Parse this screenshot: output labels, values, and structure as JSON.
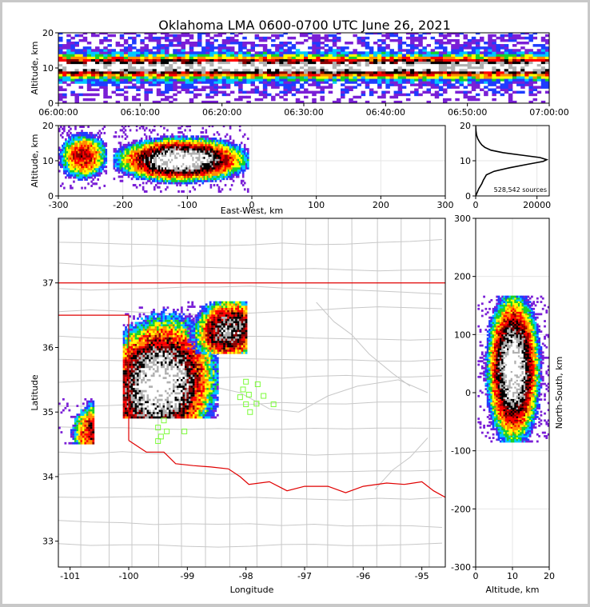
{
  "title": "Oklahoma LMA 0600-0700 UTC June 26, 2021",
  "colors": {
    "state_border": "#e00000",
    "county_line": "#c8c8c8",
    "stations": "#7cfc3a",
    "density_ramp": [
      "#7a1fd6",
      "#1f3cff",
      "#00c8ff",
      "#18d028",
      "#ffff00",
      "#ff8c00",
      "#ff0000",
      "#8b0000",
      "#000000",
      "#b0b0b0",
      "#ffffff"
    ]
  },
  "chart_data": [
    {
      "id": "time-height",
      "type": "heatmap",
      "ylabel": "Altitude, km",
      "yticks": [
        "0",
        "10",
        "20"
      ],
      "ylim": [
        0,
        20
      ],
      "xticks": [
        "06:00:00",
        "06:10:00",
        "06:20:00",
        "06:30:00",
        "06:40:00",
        "06:50:00",
        "07:00:00"
      ],
      "xlim_minutes": [
        0,
        60
      ],
      "core_altitude_km": 10,
      "lower_altitude_band_km": [
        2,
        8
      ],
      "upper_altitude_band_km": [
        12,
        18
      ]
    },
    {
      "id": "ew-altitude",
      "type": "heatmap",
      "xlabel": "East-West, km",
      "ylabel": "Altitude, km",
      "xticks": [
        "-300",
        "-200",
        "-100",
        "0",
        "100",
        "200",
        "300"
      ],
      "yticks": [
        "0",
        "10",
        "20"
      ],
      "xlim": [
        -300,
        300
      ],
      "ylim": [
        0,
        20
      ],
      "clusters": [
        {
          "ew_range_km": [
            -300,
            -225
          ],
          "alt_range_km": [
            2,
            20
          ],
          "peak_alt_km": 11,
          "intensity": 0.65
        },
        {
          "ew_range_km": [
            -215,
            -5
          ],
          "alt_range_km": [
            1,
            20
          ],
          "peak_alt_km": 10,
          "intensity": 1.0
        }
      ]
    },
    {
      "id": "altitude-histogram",
      "type": "line",
      "annotation": "528,542 sources",
      "xticks": [
        "0",
        "20000"
      ],
      "yticks": [
        "0",
        "10",
        "20"
      ],
      "xlim": [
        0,
        24000
      ],
      "ylim": [
        0,
        20
      ],
      "x": [
        0,
        1000,
        2000,
        2500,
        3500,
        6000,
        11000,
        17000,
        22000,
        23200,
        21000,
        15000,
        9000,
        5000,
        3000,
        2000,
        1300,
        700,
        300,
        100,
        0
      ],
      "y": [
        0,
        2,
        3.5,
        4.5,
        6,
        7,
        8,
        9,
        9.8,
        10.3,
        10.9,
        11.6,
        12.3,
        13,
        13.8,
        14.5,
        15.3,
        16.2,
        17.3,
        18.5,
        20
      ]
    },
    {
      "id": "plan-view",
      "type": "scatter",
      "xlabel": "Longitude",
      "ylabel": "Latitude",
      "xticks": [
        "-101",
        "-100",
        "-99",
        "-98",
        "-97",
        "-96",
        "-95"
      ],
      "yticks": [
        "33",
        "34",
        "35",
        "36",
        "37"
      ],
      "xlim": [
        -101.2,
        -94.6
      ],
      "ylim": [
        32.6,
        38
      ],
      "storm_cells": [
        {
          "lon": [
            -101.2,
            -100.6
          ],
          "lat": [
            34.5,
            35.2
          ],
          "center": [
            -100.6,
            34.7
          ],
          "intensity": 0.7
        },
        {
          "lon": [
            -100.1,
            -98.5
          ],
          "lat": [
            34.9,
            36.6
          ],
          "center": [
            -99.5,
            35.4
          ],
          "intensity": 1.0
        },
        {
          "lon": [
            -99.0,
            -98.0
          ],
          "lat": [
            35.9,
            36.7
          ],
          "center": [
            -98.3,
            36.25
          ],
          "intensity": 0.85
        }
      ],
      "stations": [
        [
          -98.0,
          35.47
        ],
        [
          -97.8,
          35.43
        ],
        [
          -98.05,
          35.35
        ],
        [
          -97.95,
          35.27
        ],
        [
          -97.7,
          35.25
        ],
        [
          -98.1,
          35.23
        ],
        [
          -98.0,
          35.12
        ],
        [
          -97.82,
          35.13
        ],
        [
          -97.53,
          35.12
        ],
        [
          -97.93,
          35.0
        ],
        [
          -99.4,
          34.87
        ],
        [
          -99.5,
          34.76
        ],
        [
          -99.35,
          34.7
        ],
        [
          -99.05,
          34.7
        ],
        [
          -99.45,
          34.62
        ],
        [
          -99.5,
          34.55
        ]
      ]
    },
    {
      "id": "altitude-ns",
      "type": "heatmap",
      "xlabel": "Altitude, km",
      "ylabel": "North-South, km",
      "xticks": [
        "0",
        "10",
        "20"
      ],
      "yticks": [
        "-300",
        "-200",
        "-100",
        "0",
        "100",
        "200",
        "300"
      ],
      "xlim": [
        0,
        20
      ],
      "ylim": [
        -300,
        300
      ],
      "cluster": {
        "ns_range_km": [
          -85,
          165
        ],
        "alt_range_km": [
          0.5,
          20
        ],
        "peak_alt_km": 10,
        "intensity": 1.0
      }
    }
  ]
}
